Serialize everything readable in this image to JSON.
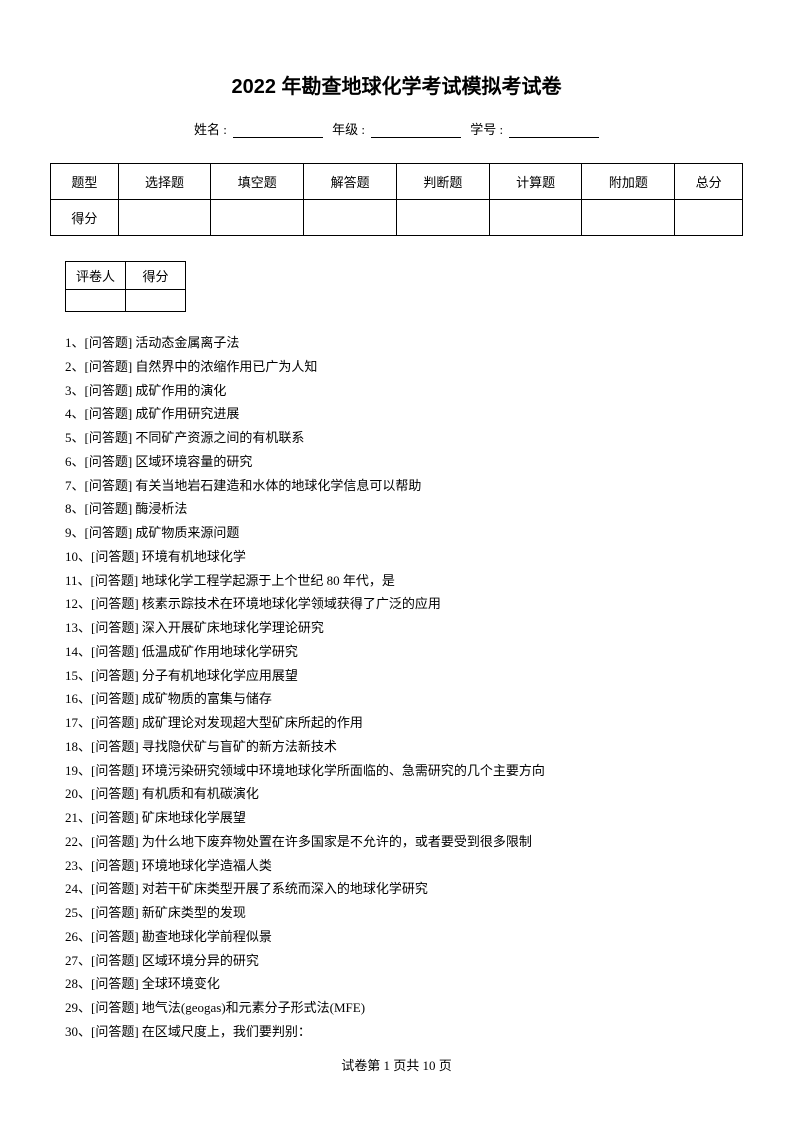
{
  "title": "2022 年勘查地球化学考试模拟考试卷",
  "info": {
    "name_label": "姓名 :",
    "grade_label": "年级 :",
    "student_id_label": "学号 :"
  },
  "score_table": {
    "headers": [
      "题型",
      "选择题",
      "填空题",
      "解答题",
      "判断题",
      "计算题",
      "附加题",
      "总分"
    ],
    "row_label": "得分"
  },
  "grader_table": {
    "col1": "评卷人",
    "col2": "得分"
  },
  "questions": [
    "1、[问答题] 活动态金属离子法",
    "2、[问答题] 自然界中的浓缩作用已广为人知",
    "3、[问答题] 成矿作用的演化",
    "4、[问答题] 成矿作用研究进展",
    "5、[问答题] 不同矿产资源之间的有机联系",
    "6、[问答题] 区域环境容量的研究",
    "7、[问答题] 有关当地岩石建造和水体的地球化学信息可以帮助",
    "8、[问答题] 酶浸析法",
    "9、[问答题] 成矿物质来源问题",
    "10、[问答题] 环境有机地球化学",
    "11、[问答题] 地球化学工程学起源于上个世纪 80 年代，是",
    "12、[问答题] 核素示踪技术在环境地球化学领域获得了广泛的应用",
    "13、[问答题] 深入开展矿床地球化学理论研究",
    "14、[问答题] 低温成矿作用地球化学研究",
    "15、[问答题] 分子有机地球化学应用展望",
    "16、[问答题] 成矿物质的富集与储存",
    "17、[问答题] 成矿理论对发现超大型矿床所起的作用",
    "18、[问答题] 寻找隐伏矿与盲矿的新方法新技术",
    "19、[问答题] 环境污染研究领域中环境地球化学所面临的、急需研究的几个主要方向",
    "20、[问答题] 有机质和有机碳演化",
    "21、[问答题] 矿床地球化学展望",
    "22、[问答题] 为什么地下废弃物处置在许多国家是不允许的，或者要受到很多限制",
    "23、[问答题] 环境地球化学造福人类",
    "24、[问答题] 对若干矿床类型开展了系统而深入的地球化学研究",
    "25、[问答题] 新矿床类型的发现",
    "26、[问答题] 勘查地球化学前程似景",
    "27、[问答题] 区域环境分异的研究",
    "28、[问答题] 全球环境变化",
    "29、[问答题] 地气法(geogas)和元素分子形式法(MFE)",
    "30、[问答题] 在区域尺度上，我们要判别："
  ],
  "footer": {
    "text": "试卷第 1 页共 10 页"
  }
}
